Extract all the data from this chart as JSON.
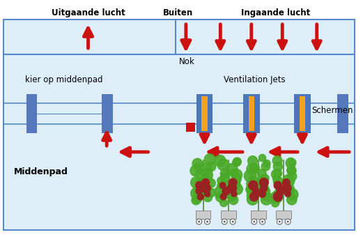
{
  "bg_color": "#ddeef8",
  "border_color": "#5588cc",
  "wall_color": "#5588cc",
  "screen_color": "#5577bb",
  "jet_blue": "#4a77bb",
  "jet_orange": "#f5a020",
  "arrow_color": "#cc1111",
  "text_color": "#000000",
  "label_uitgaande": "Uitgaande lucht",
  "label_buiten": "Buiten",
  "label_ingaande": "Ingaande lucht",
  "label_nok": "Nok",
  "label_kier": "kier op middenpad",
  "label_vents": "Ventilation Jets",
  "label_schermen": "Schermen",
  "label_middenpad": "Middenpad",
  "figw": 5.21,
  "figh": 3.4,
  "dpi": 100
}
